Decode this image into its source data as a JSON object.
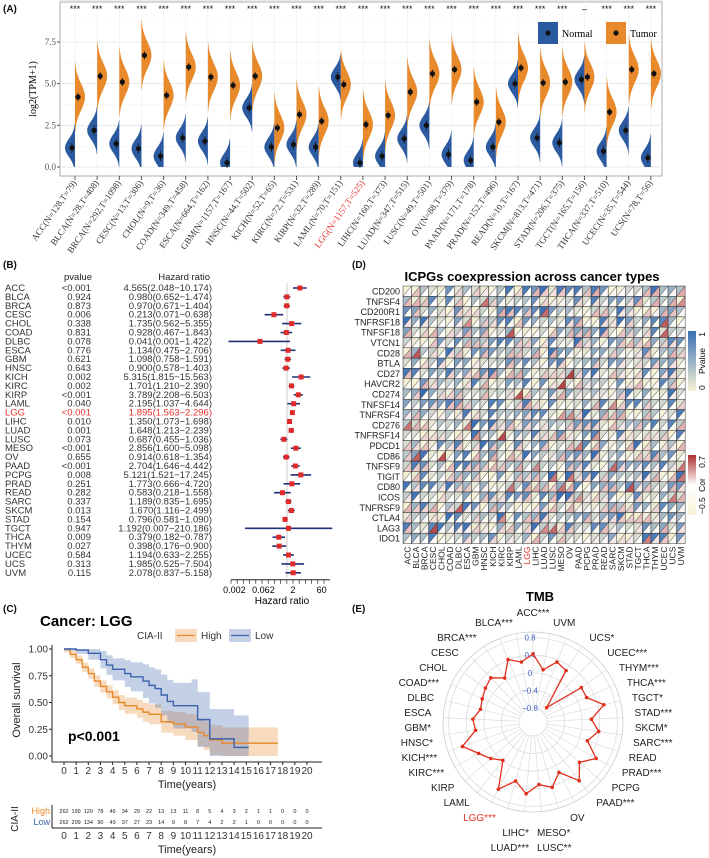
{
  "panels": {
    "A": "(A)",
    "B": "(B)",
    "C": "(C)",
    "D": "(D)",
    "E": "(E)"
  },
  "colors": {
    "normal": "#2c5aa0",
    "tumor": "#e8892b",
    "high": "#e8892b",
    "low": "#3a62ad",
    "forest_line": "#1f2f7a",
    "forest_point": "#e02a2a",
    "highlight": "#e8302a",
    "radar": "#e0301e",
    "radar_ticks": "#4a64c8"
  },
  "chart_data": [
    {
      "type": "violin",
      "ylabel": "log2(TPM+1)",
      "yticks": [
        "0.0",
        "2.5",
        "5.0",
        "7.5"
      ],
      "ylim": [
        -0.2,
        9.3
      ],
      "grid": true,
      "legend_placement": "top-right",
      "categories": [
        "ACC(N=128,T=79)",
        "BLCA(N=28,T=408)",
        "BRCA(N=292,T=1098)",
        "CESC(N=13,T=306)",
        "CHOL(N=9,T=36)",
        "COAD(N=349,T=458)",
        "ESCA(N=664,T=162)",
        "GBM(N=1157,T=167)",
        "HNSC(N=44,T=502)",
        "KICH(N=52,T=65)",
        "KIRC(N=72,T=531)",
        "KIRP(N=32,T=289)",
        "LAML(N=70,T=151)",
        "LGG(N=1157,T=525)",
        "LIHC(N=160,T=373)",
        "LUAD(N=347,T=515)",
        "LUSC(N=49,T=501)",
        "OV(N=88,T=379)",
        "PAAD(N=171,T=178)",
        "PRAD(N=152,T=496)",
        "READ(N=10,T=167)",
        "SKCM(N=813,T=471)",
        "STAD(N=206,T=375)",
        "TGCT(N=165,T=156)",
        "THCA(N=337,T=510)",
        "UCEC(N=35,T=544)",
        "UCS(N=78,T=56)"
      ],
      "highlight": "LGG(N=1157,T=525)",
      "significance": [
        "***",
        "***",
        "***",
        "***",
        "***",
        "***",
        "***",
        "***",
        "***",
        "***",
        "***",
        "***",
        "***",
        "***",
        "***",
        "***",
        "***",
        "***",
        "***",
        "***",
        "***",
        "***",
        "***",
        "–",
        "***",
        "***",
        "***"
      ],
      "series": [
        {
          "name": "Normal",
          "medians": [
            1.15,
            2.2,
            1.4,
            1.1,
            0.65,
            1.75,
            1.55,
            0.25,
            3.55,
            1.2,
            1.35,
            1.2,
            5.4,
            0.25,
            0.65,
            1.7,
            2.5,
            0.75,
            0.4,
            1.2,
            5.0,
            1.75,
            1.45,
            5.25,
            0.95,
            2.2,
            0.55
          ]
        },
        {
          "name": "Tumor",
          "medians": [
            4.2,
            5.45,
            5.1,
            6.7,
            4.3,
            6.0,
            5.4,
            4.9,
            5.45,
            2.35,
            3.15,
            2.75,
            4.95,
            2.55,
            3.1,
            4.5,
            5.6,
            5.85,
            3.9,
            2.7,
            5.95,
            5.05,
            5.1,
            5.4,
            3.3,
            5.85,
            5.6
          ]
        }
      ]
    },
    {
      "type": "forest",
      "headers": {
        "pvalue": "pvalue",
        "hr": "Hazard ratio"
      },
      "xlabel": "Hazard ratio",
      "xticks": [
        "0.002",
        "0.062",
        "2",
        "60"
      ],
      "xscale": "log",
      "highlight": "LGG",
      "rows": [
        {
          "cancer": "ACC",
          "pvalue": "<0.001",
          "hr": "4.565(2.048−10.174)"
        },
        {
          "cancer": "BLCA",
          "pvalue": "0.924",
          "hr": "0.980(0.652−1.474)"
        },
        {
          "cancer": "BRCA",
          "pvalue": "0.873",
          "hr": "0.970(0.671−1.404)"
        },
        {
          "cancer": "CESC",
          "pvalue": "0.006",
          "hr": "0.213(0.071−0.638)"
        },
        {
          "cancer": "CHOL",
          "pvalue": "0.338",
          "hr": "1.735(0.562−5.355)"
        },
        {
          "cancer": "COAD",
          "pvalue": "0.831",
          "hr": "0.928(0.467−1.843)"
        },
        {
          "cancer": "DLBC",
          "pvalue": "0.078",
          "hr": "0.041(0.001−1.422)"
        },
        {
          "cancer": "ESCA",
          "pvalue": "0.776",
          "hr": "1.134(0.475−2.706)"
        },
        {
          "cancer": "GBM",
          "pvalue": "0.621",
          "hr": "1.098(0.758−1.591)"
        },
        {
          "cancer": "HNSC",
          "pvalue": "0.643",
          "hr": "0.900(0.578−1.403)"
        },
        {
          "cancer": "KICH",
          "pvalue": "0.002",
          "hr": "5.315(1.815−15.563)"
        },
        {
          "cancer": "KIRC",
          "pvalue": "0.002",
          "hr": "1.701(1.210−2.390)"
        },
        {
          "cancer": "KIRP",
          "pvalue": "<0.001",
          "hr": "3.789(2.208−6.503)"
        },
        {
          "cancer": "LAML",
          "pvalue": "0.040",
          "hr": "2.195(1.037−4.644)"
        },
        {
          "cancer": "LGG",
          "pvalue": "<0.001",
          "hr": "1.895(1.563−2.296)"
        },
        {
          "cancer": "LIHC",
          "pvalue": "0.010",
          "hr": "1.350(1.073−1.698)"
        },
        {
          "cancer": "LUAD",
          "pvalue": "0.001",
          "hr": "1.648(1.213−2.239)"
        },
        {
          "cancer": "LUSC",
          "pvalue": "0.073",
          "hr": "0.687(0.455−1.036)"
        },
        {
          "cancer": "MESO",
          "pvalue": "<0.001",
          "hr": "2.856(1.600−5.098)"
        },
        {
          "cancer": "OV",
          "pvalue": "0.655",
          "hr": "0.914(0.618−1.354)"
        },
        {
          "cancer": "PAAD",
          "pvalue": "<0.001",
          "hr": "2.704(1.646−4.442)"
        },
        {
          "cancer": "PCPG",
          "pvalue": "0.008",
          "hr": "5.121(1.521−17.245)"
        },
        {
          "cancer": "PRAD",
          "pvalue": "0.251",
          "hr": "1.773(0.666−4.720)"
        },
        {
          "cancer": "READ",
          "pvalue": "0.282",
          "hr": "0.583(0.218−1.558)"
        },
        {
          "cancer": "SARC",
          "pvalue": "0.337",
          "hr": "1.189(0.835−1.695)"
        },
        {
          "cancer": "SKCM",
          "pvalue": "0.013",
          "hr": "1.670(1.116−2.499)"
        },
        {
          "cancer": "STAD",
          "pvalue": "0.154",
          "hr": "0.796(0.581−1.090)"
        },
        {
          "cancer": "TGCT",
          "pvalue": "0.947",
          "hr": "1.192(0.007−210.186)"
        },
        {
          "cancer": "THCA",
          "pvalue": "0.009",
          "hr": "0.379(0.182−0.787)"
        },
        {
          "cancer": "THYM",
          "pvalue": "0.027",
          "hr": "0.398(0.176−0.900)"
        },
        {
          "cancer": "UCEC",
          "pvalue": "0.584",
          "hr": "1.194(0.633−2.255)"
        },
        {
          "cancer": "UCS",
          "pvalue": "0.313",
          "hr": "1.985(0.525−7.504)"
        },
        {
          "cancer": "UVM",
          "pvalue": "0.115",
          "hr": "2.078(0.837−5.158)"
        }
      ]
    },
    {
      "type": "line",
      "title": "Cancer: LGG",
      "legend_title": "CIA-II",
      "legend_placement": "top",
      "xlabel": "Time(years)",
      "ylabel": "Overall survival",
      "xlim": [
        0,
        20
      ],
      "ylim": [
        0,
        1
      ],
      "xticks": [
        "0",
        "1",
        "2",
        "3",
        "4",
        "5",
        "6",
        "7",
        "8",
        "9",
        "10",
        "11",
        "12",
        "13",
        "14",
        "15",
        "16",
        "17",
        "18",
        "19",
        "20"
      ],
      "yticks": [
        "0.00",
        "0.25",
        "0.50",
        "0.75",
        "1.00"
      ],
      "annotation": "p<0.001",
      "series": [
        {
          "name": "High",
          "points": [
            [
              0,
              1
            ],
            [
              0.5,
              0.95
            ],
            [
              1,
              0.9
            ],
            [
              1.5,
              0.83
            ],
            [
              2,
              0.77
            ],
            [
              2.5,
              0.7
            ],
            [
              3,
              0.65
            ],
            [
              3.5,
              0.6
            ],
            [
              4,
              0.55
            ],
            [
              4.5,
              0.5
            ],
            [
              5,
              0.47
            ],
            [
              6,
              0.44
            ],
            [
              6.5,
              0.41
            ],
            [
              7,
              0.39
            ],
            [
              8,
              0.32
            ],
            [
              9,
              0.3
            ],
            [
              10,
              0.27
            ],
            [
              11,
              0.22
            ],
            [
              11.5,
              0.19
            ],
            [
              12,
              0.15
            ],
            [
              13,
              0.12
            ],
            [
              17.6,
              0.12
            ]
          ]
        },
        {
          "name": "Low",
          "points": [
            [
              0,
              1
            ],
            [
              1,
              0.99
            ],
            [
              2,
              0.96
            ],
            [
              3,
              0.9
            ],
            [
              3.5,
              0.85
            ],
            [
              4,
              0.81
            ],
            [
              5,
              0.77
            ],
            [
              5.5,
              0.74
            ],
            [
              6.5,
              0.7
            ],
            [
              7,
              0.66
            ],
            [
              7.5,
              0.63
            ],
            [
              8,
              0.57
            ],
            [
              8.5,
              0.51
            ],
            [
              9,
              0.47
            ],
            [
              10.5,
              0.47
            ],
            [
              11,
              0.34
            ],
            [
              12,
              0.16
            ],
            [
              14,
              0.08
            ],
            [
              15.2,
              0.08
            ]
          ]
        }
      ],
      "risk_table": {
        "title": "CIA-II",
        "xlabel": "Time(years)",
        "rows": [
          {
            "name": "High",
            "values": [
              "262",
              "199",
              "120",
              "78",
              "46",
              "34",
              "29",
              "22",
              "13",
              "13",
              "11",
              "8",
              "5",
              "4",
              "3",
              "2",
              "1",
              "1",
              "0",
              "0",
              "0"
            ]
          },
          {
            "name": "Low",
            "values": [
              "262",
              "209",
              "134",
              "90",
              "49",
              "37",
              "27",
              "23",
              "14",
              "9",
              "8",
              "7",
              "4",
              "2",
              "2",
              "1",
              "0",
              "0",
              "0",
              "0",
              "0"
            ]
          }
        ]
      }
    },
    {
      "type": "heatmap",
      "title": "ICPGs coexpression across cancer types",
      "rows": [
        "CD200",
        "TNFSF4",
        "CD200R1",
        "TNFRSF18",
        "TNFSF18",
        "VTCN1",
        "CD28",
        "BTLA",
        "CD27",
        "HAVCR2",
        "CD274",
        "TNFSF14",
        "TNFRSF4",
        "CD276",
        "TNFRSF14",
        "PDCD1",
        "CD86",
        "TNFSF9",
        "TIGIT",
        "CD80",
        "ICOS",
        "TNFRSF9",
        "CTLA4",
        "LAG3",
        "IDO1"
      ],
      "columns": [
        "ACC",
        "BLCA",
        "BRCA",
        "CESC",
        "CHOL",
        "COAD",
        "DLBC",
        "ESCA",
        "GBM",
        "HNSC",
        "KICH",
        "KIRC",
        "KIRP",
        "LAML",
        "LGG",
        "LIHC",
        "LUAD",
        "LUSC",
        "MESO",
        "OV",
        "PAAD",
        "PCPG",
        "PRAD",
        "READ",
        "SARC",
        "SKCM",
        "STAD",
        "TGCT",
        "THCA",
        "THYM",
        "UCEC",
        "UCS",
        "UVM"
      ],
      "highlight": "LGG",
      "legends": [
        {
          "title": "Pvalue",
          "max": "1",
          "min": "0",
          "colors": [
            "#3a6fb5",
            "#f7f3d6"
          ]
        },
        {
          "title": "Cor",
          "max": "0.7",
          "min": "−0.5",
          "colors": [
            "#b03030",
            "#ffffff",
            "#f7f3d6"
          ]
        }
      ]
    },
    {
      "type": "radar",
      "title": "TMB",
      "rticks": [
        "0.8",
        "0.4",
        "0",
        "−0.4",
        "−0.8"
      ],
      "highlight": "LGG***",
      "labels": [
        "ACC***",
        "UVM",
        "UCS*",
        "UCEC***",
        "THYM***",
        "THCA***",
        "TGCT*",
        "STAD***",
        "SKCM*",
        "SARC***",
        "READ",
        "PRAD***",
        "PCPG",
        "PAAD***",
        "OV",
        "MESO*",
        "LUSC**",
        "LUAD***",
        "LIHC*",
        "LGG***",
        "LAML",
        "KIRP",
        "KIRC***",
        "KICH***",
        "HNSC*",
        "GBM*",
        "ESCA",
        "DLBC",
        "COAD***",
        "CHOL",
        "CESC",
        "BRCA***",
        "BLCA***"
      ],
      "values": [
        0.43,
        0.09,
        0.35,
        0.27,
        -0.67,
        0.23,
        0.22,
        0.54,
        0.21,
        0.39,
        0.19,
        0.54,
        0.28,
        0.58,
        0.17,
        0.43,
        0.31,
        0.52,
        0.28,
        0.6,
        -0.01,
        0.15,
        0.31,
        0.58,
        0.2,
        0.25,
        0.11,
        0.15,
        0.21,
        0.27,
        0.07,
        0.41,
        0.27
      ]
    }
  ]
}
